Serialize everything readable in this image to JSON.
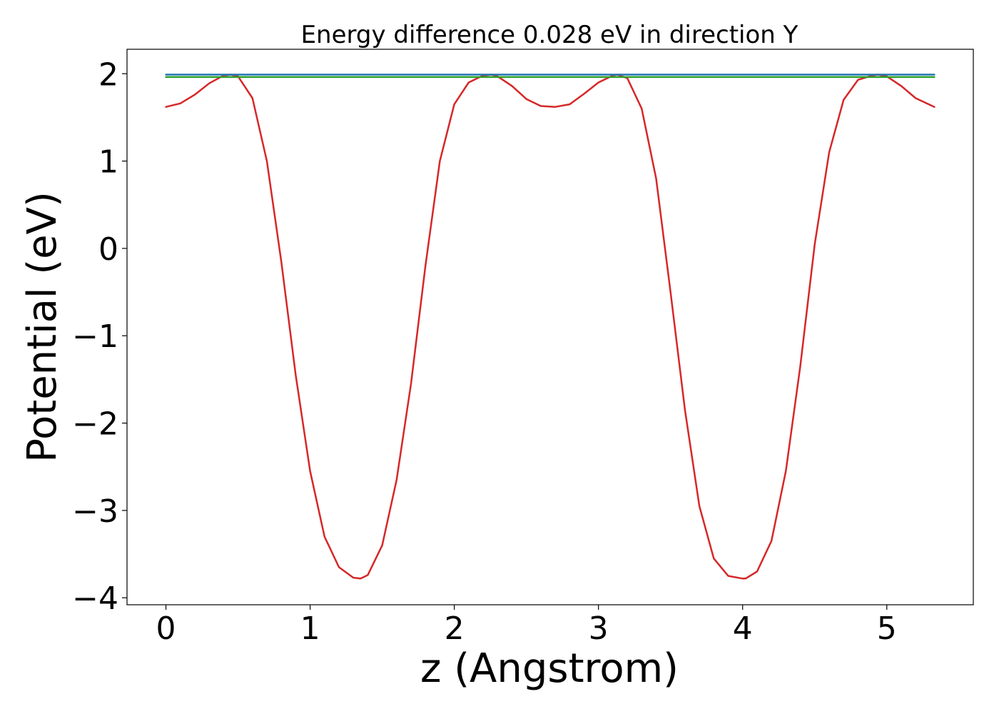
{
  "chart_data": {
    "type": "line",
    "title": "Energy difference 0.028 eV in direction Y",
    "xlabel": "z (Angstrom)",
    "ylabel": "Potential (eV)",
    "xlim": [
      -0.27,
      5.6
    ],
    "ylim": [
      -4.08,
      2.28
    ],
    "xticks": [
      0,
      1,
      2,
      3,
      4,
      5
    ],
    "xtick_labels": [
      "0",
      "1",
      "2",
      "3",
      "4",
      "5"
    ],
    "yticks": [
      -4,
      -3,
      -2,
      -1,
      0,
      1,
      2
    ],
    "ytick_labels": [
      "−4",
      "−3",
      "−2",
      "−1",
      "0",
      "1",
      "2"
    ],
    "grid": false,
    "legend": "none",
    "series": [
      {
        "color": "#d62728",
        "x": [
          0.0,
          0.1,
          0.2,
          0.3,
          0.4,
          0.45,
          0.5,
          0.6,
          0.7,
          0.8,
          0.9,
          1.0,
          1.1,
          1.2,
          1.3,
          1.35,
          1.4,
          1.5,
          1.6,
          1.7,
          1.8,
          1.9,
          2.0,
          2.1,
          2.2,
          2.26,
          2.3,
          2.4,
          2.5,
          2.6,
          2.7,
          2.8,
          2.9,
          3.0,
          3.1,
          3.13,
          3.2,
          3.3,
          3.4,
          3.5,
          3.6,
          3.7,
          3.8,
          3.9,
          4.0,
          4.02,
          4.1,
          4.2,
          4.3,
          4.4,
          4.5,
          4.6,
          4.7,
          4.8,
          4.9,
          4.94,
          5.0,
          5.1,
          5.2,
          5.33
        ],
        "y": [
          1.62,
          1.66,
          1.76,
          1.89,
          1.98,
          1.99,
          1.97,
          1.72,
          1.0,
          -0.15,
          -1.45,
          -2.55,
          -3.3,
          -3.65,
          -3.77,
          -3.78,
          -3.74,
          -3.4,
          -2.65,
          -1.55,
          -0.2,
          1.0,
          1.65,
          1.9,
          1.98,
          1.99,
          1.97,
          1.86,
          1.71,
          1.63,
          1.62,
          1.65,
          1.77,
          1.9,
          1.98,
          1.99,
          1.95,
          1.6,
          0.8,
          -0.5,
          -1.85,
          -2.95,
          -3.55,
          -3.75,
          -3.78,
          -3.78,
          -3.7,
          -3.35,
          -2.55,
          -1.35,
          0.05,
          1.1,
          1.7,
          1.93,
          1.98,
          1.99,
          1.97,
          1.86,
          1.72,
          1.62
        ]
      },
      {
        "color": "#1f77b4",
        "x": [
          0.0,
          5.33
        ],
        "y": [
          1.99,
          1.99
        ]
      },
      {
        "color": "#2ca02c",
        "x": [
          0.0,
          5.33
        ],
        "y": [
          1.962,
          1.962
        ]
      }
    ]
  }
}
